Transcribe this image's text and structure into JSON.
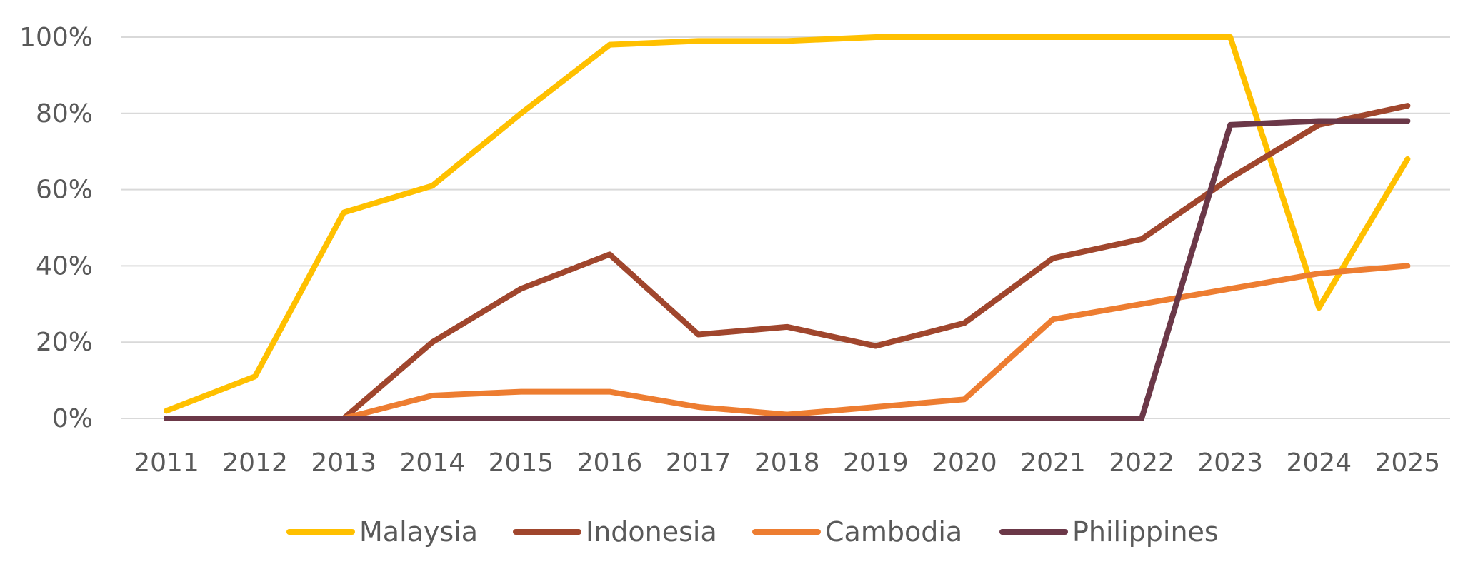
{
  "chart_data": {
    "type": "line",
    "x": [
      "2011",
      "2012",
      "2013",
      "2014",
      "2015",
      "2016",
      "2017",
      "2018",
      "2019",
      "2020",
      "2021",
      "2022",
      "2023",
      "2024",
      "2025"
    ],
    "ylim": [
      0,
      100
    ],
    "y_ticks": [
      0,
      20,
      40,
      60,
      80,
      100
    ],
    "y_tick_labels": [
      "0%",
      "20%",
      "40%",
      "60%",
      "80%",
      "100%"
    ],
    "grid": true,
    "legend_position": "bottom",
    "series": [
      {
        "name": "Malaysia",
        "color": "#FFC000",
        "values": [
          2,
          11,
          54,
          61,
          80,
          98,
          99,
          99,
          100,
          100,
          100,
          100,
          100,
          29,
          68
        ]
      },
      {
        "name": "Indonesia",
        "color": "#A0462D",
        "values": [
          0,
          0,
          0,
          20,
          34,
          43,
          22,
          24,
          19,
          25,
          42,
          47,
          63,
          77,
          82
        ]
      },
      {
        "name": "Cambodia",
        "color": "#ED7D31",
        "values": [
          0,
          0,
          0,
          6,
          7,
          7,
          3,
          1,
          3,
          5,
          26,
          30,
          34,
          38,
          40
        ]
      },
      {
        "name": "Philippines",
        "color": "#6B3848",
        "values": [
          0,
          0,
          0,
          0,
          0,
          0,
          0,
          0,
          0,
          0,
          0,
          0,
          77,
          78,
          78
        ]
      }
    ]
  }
}
